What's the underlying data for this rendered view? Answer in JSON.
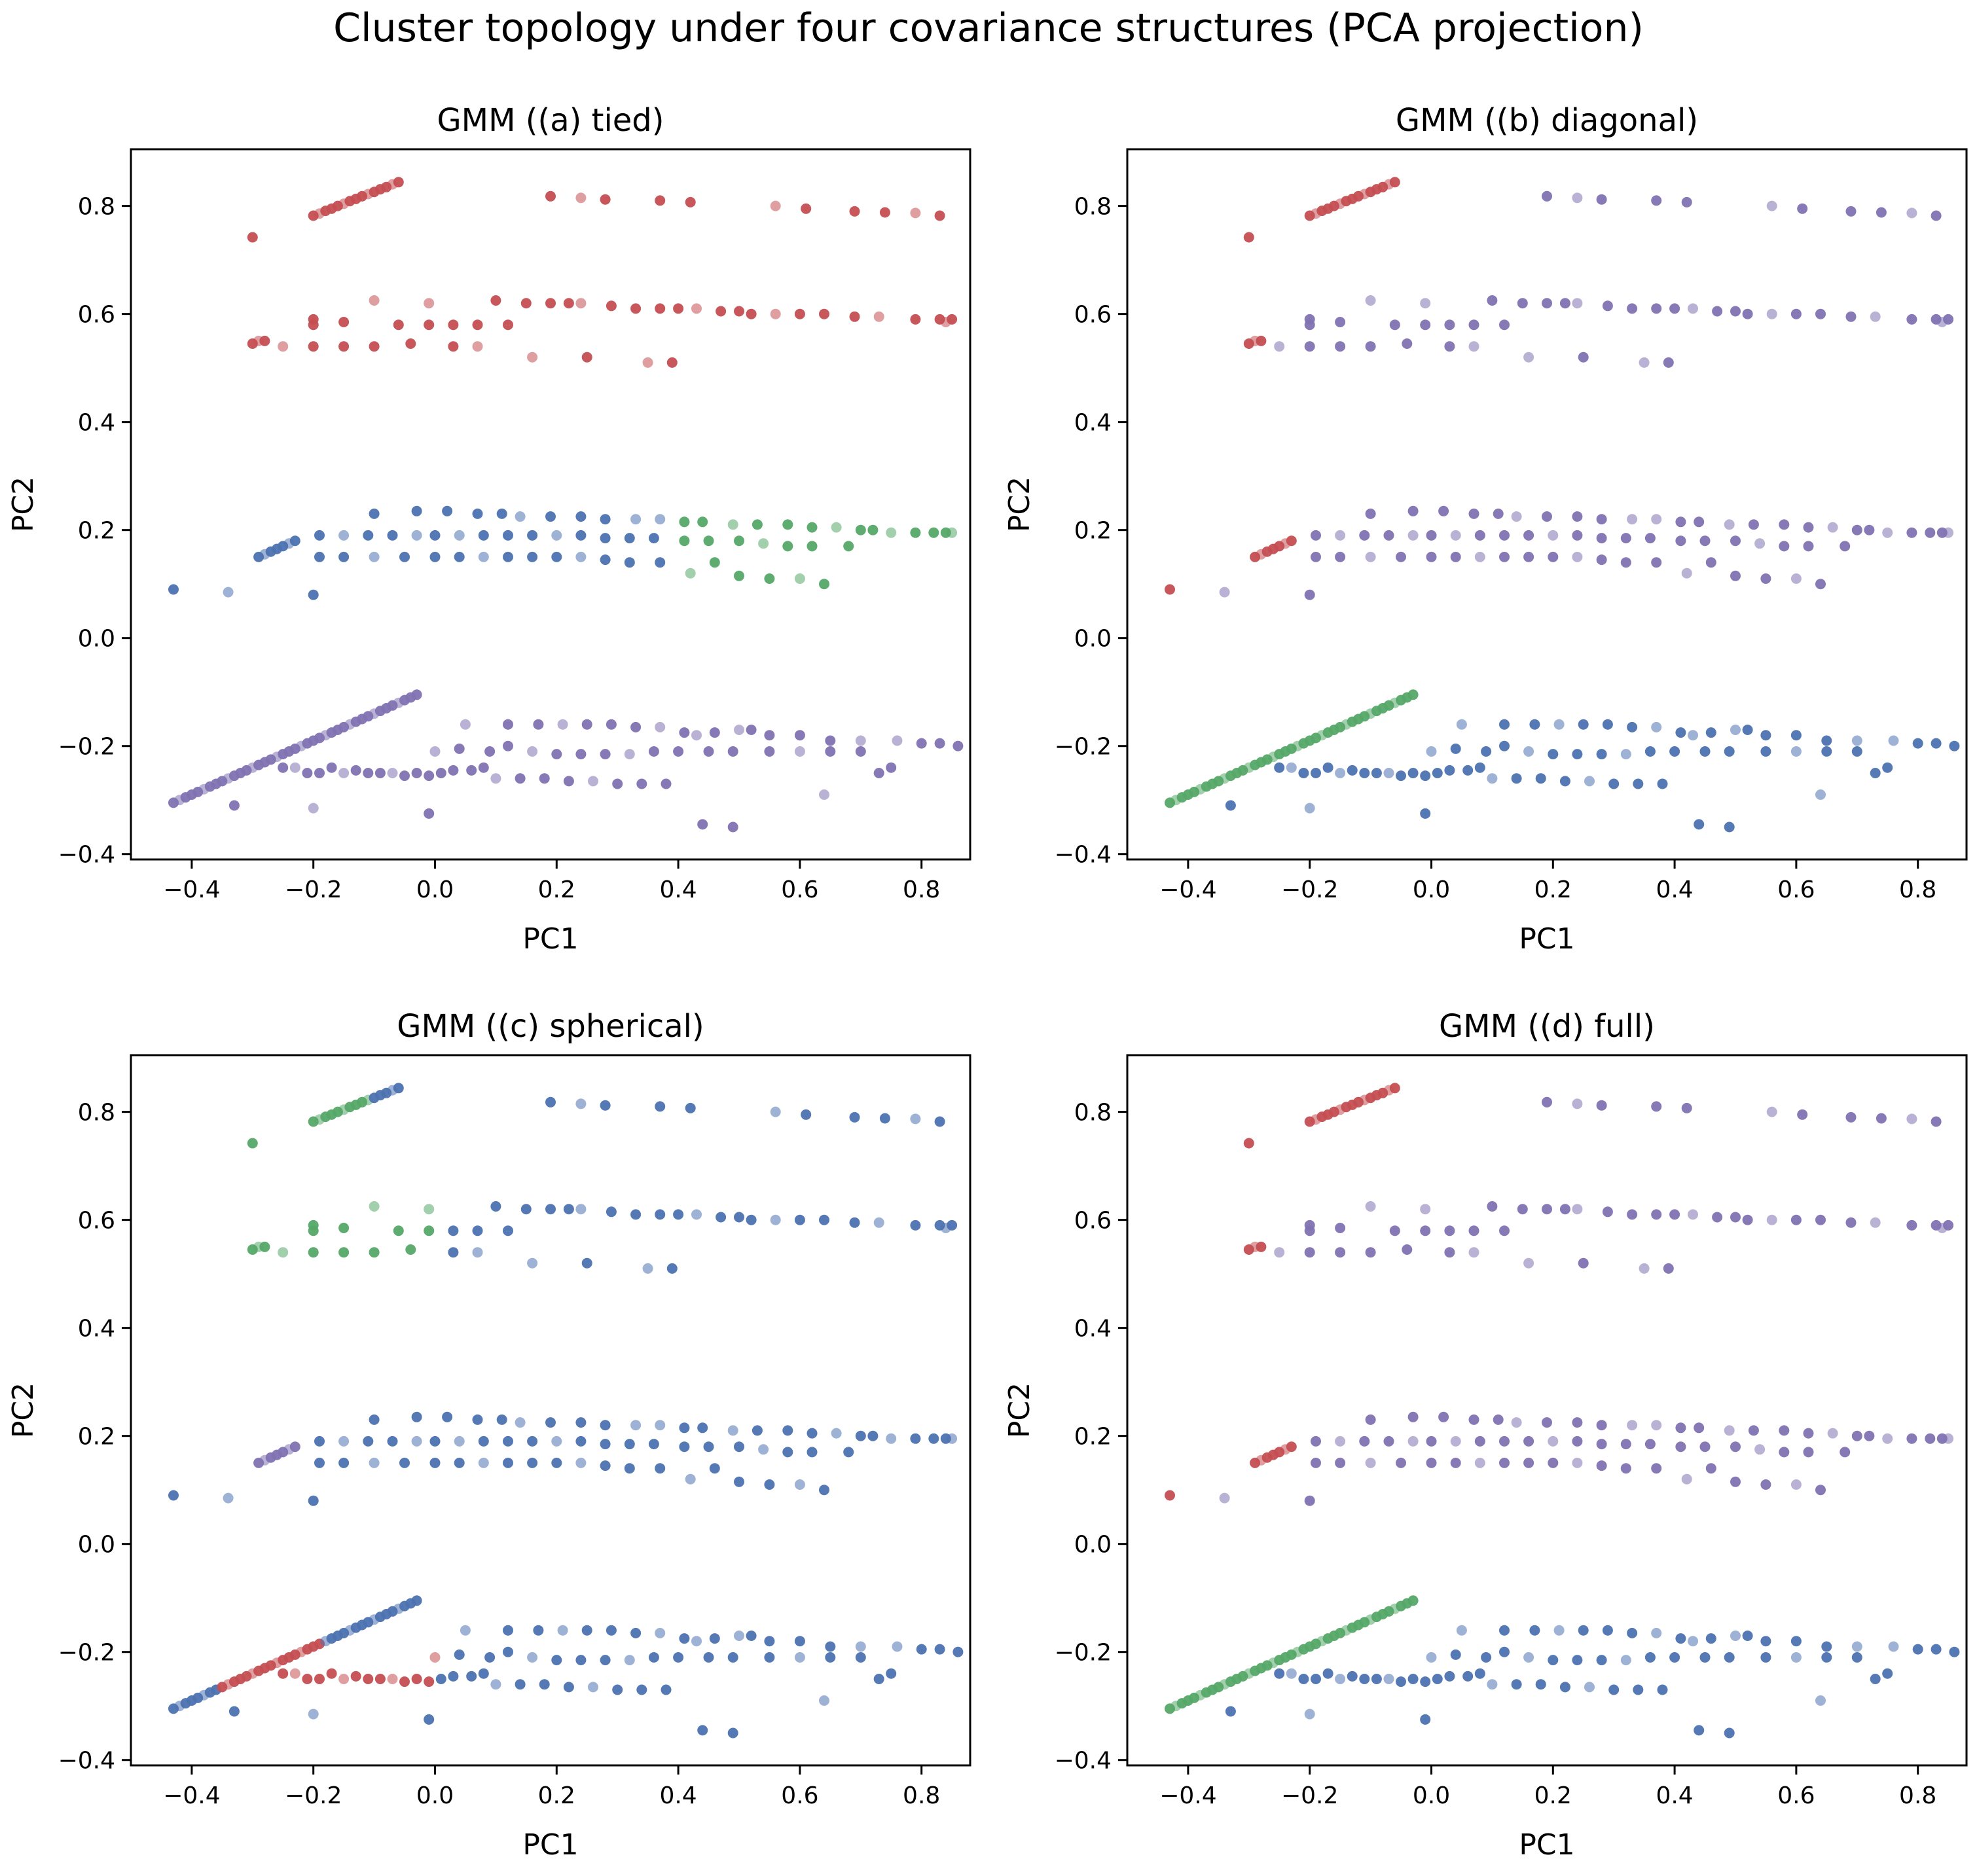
{
  "suptitle": "Cluster topology under four covariance structures (PCA projection)",
  "colors": {
    "red": "#c44e52",
    "blue": "#4c72b0",
    "green": "#55a868",
    "purple": "#8172b2"
  },
  "chart_data": {
    "type": "scatter",
    "xlim": [
      -0.5,
      0.88
    ],
    "ylim": [
      -0.41,
      0.905
    ],
    "xticks": [
      "-0.4",
      "-0.2",
      "0.0",
      "0.2",
      "0.4",
      "0.6",
      "0.8"
    ],
    "yticks": [
      "-0.4",
      "-0.2",
      "0.0",
      "0.2",
      "0.4",
      "0.6",
      "0.8"
    ],
    "grid": false,
    "legend": false,
    "panels": [
      {
        "title": "GMM ((a) tied)",
        "xlabel": "PC1",
        "ylabel": "PC2",
        "assignments": {
          "diag_top": "red",
          "band_08": "red",
          "band_06": "red",
          "band_02": [
            "blue",
            0.4,
            "green"
          ],
          "low_diag": "purple",
          "band_m02": "purple",
          "outliers_mid": "blue",
          "outliers_low": "purple"
        }
      },
      {
        "title": "GMM ((b) diagonal)",
        "xlabel": "PC1",
        "ylabel": "PC2",
        "assignments": {
          "diag_top": "red",
          "band_08": "purple",
          "band_06": [
            "red",
            -0.27,
            "purple"
          ],
          "band_02": [
            "red",
            -0.22,
            "purple"
          ],
          "low_diag": "green",
          "band_m02": "blue",
          "outliers_mid": [
            "red",
            -0.38,
            "purple"
          ],
          "outliers_low": "blue"
        }
      },
      {
        "title": "GMM ((c) spherical)",
        "xlabel": "PC1",
        "ylabel": "PC2",
        "assignments": {
          "diag_top": [
            "green",
            -0.11,
            "blue"
          ],
          "band_08": "blue",
          "band_06": [
            "green",
            0.0,
            "blue"
          ],
          "band_02": [
            "purple",
            -0.2,
            "blue"
          ],
          "low_diag": [
            "blue",
            -0.36,
            "red",
            -0.19,
            "blue"
          ],
          "band_m02": [
            "red",
            0.0,
            "blue"
          ],
          "outliers_mid": "blue",
          "outliers_low": "blue"
        }
      },
      {
        "title": "GMM ((d) full)",
        "xlabel": "PC1",
        "ylabel": "PC2",
        "assignments": {
          "diag_top": "red",
          "band_08": "purple",
          "band_06": [
            "red",
            -0.27,
            "purple"
          ],
          "band_02": [
            "red",
            -0.22,
            "purple"
          ],
          "low_diag": "green",
          "band_m02": "blue",
          "outliers_mid": [
            "red",
            -0.38,
            "purple"
          ],
          "outliers_low": "blue"
        }
      }
    ],
    "groups": {
      "diag_top": [
        [
          -0.2,
          0.782
        ],
        [
          -0.19,
          0.786
        ],
        [
          -0.18,
          0.791
        ],
        [
          -0.17,
          0.795
        ],
        [
          -0.16,
          0.8
        ],
        [
          -0.15,
          0.804
        ],
        [
          -0.14,
          0.809
        ],
        [
          -0.13,
          0.813
        ],
        [
          -0.12,
          0.818
        ],
        [
          -0.11,
          0.822
        ],
        [
          -0.1,
          0.826
        ],
        [
          -0.09,
          0.831
        ],
        [
          -0.08,
          0.835
        ],
        [
          -0.07,
          0.84
        ],
        [
          -0.06,
          0.844
        ],
        [
          -0.3,
          0.742
        ]
      ],
      "band_08": [
        [
          0.19,
          0.818
        ],
        [
          0.24,
          0.815
        ],
        [
          0.28,
          0.812
        ],
        [
          0.37,
          0.81
        ],
        [
          0.42,
          0.807
        ],
        [
          0.56,
          0.8
        ],
        [
          0.61,
          0.795
        ],
        [
          0.69,
          0.79
        ],
        [
          0.74,
          0.788
        ],
        [
          0.79,
          0.787
        ],
        [
          0.83,
          0.782
        ]
      ],
      "band_06": [
        [
          -0.3,
          0.545
        ],
        [
          -0.29,
          0.55
        ],
        [
          -0.28,
          0.55
        ],
        [
          -0.2,
          0.59
        ],
        [
          -0.2,
          0.58
        ],
        [
          -0.25,
          0.54
        ],
        [
          -0.2,
          0.54
        ],
        [
          -0.15,
          0.585
        ],
        [
          -0.15,
          0.54
        ],
        [
          -0.1,
          0.625
        ],
        [
          -0.1,
          0.54
        ],
        [
          -0.06,
          0.58
        ],
        [
          -0.04,
          0.545
        ],
        [
          -0.01,
          0.62
        ],
        [
          -0.01,
          0.58
        ],
        [
          0.03,
          0.54
        ],
        [
          0.03,
          0.58
        ],
        [
          0.07,
          0.54
        ],
        [
          0.07,
          0.58
        ],
        [
          0.1,
          0.625
        ],
        [
          0.12,
          0.58
        ],
        [
          0.16,
          0.52
        ],
        [
          0.15,
          0.62
        ],
        [
          0.19,
          0.62
        ],
        [
          0.22,
          0.62
        ],
        [
          0.24,
          0.62
        ],
        [
          0.25,
          0.52
        ],
        [
          0.29,
          0.615
        ],
        [
          0.33,
          0.61
        ],
        [
          0.35,
          0.51
        ],
        [
          0.37,
          0.61
        ],
        [
          0.39,
          0.51
        ],
        [
          0.4,
          0.61
        ],
        [
          0.43,
          0.61
        ],
        [
          0.47,
          0.605
        ],
        [
          0.5,
          0.605
        ],
        [
          0.52,
          0.6
        ],
        [
          0.56,
          0.6
        ],
        [
          0.6,
          0.6
        ],
        [
          0.64,
          0.6
        ],
        [
          0.69,
          0.595
        ],
        [
          0.73,
          0.595
        ],
        [
          0.79,
          0.59
        ],
        [
          0.83,
          0.59
        ],
        [
          0.85,
          0.59
        ],
        [
          0.84,
          0.585
        ]
      ],
      "band_02": [
        [
          -0.29,
          0.15
        ],
        [
          -0.28,
          0.155
        ],
        [
          -0.27,
          0.16
        ],
        [
          -0.26,
          0.165
        ],
        [
          -0.25,
          0.17
        ],
        [
          -0.24,
          0.175
        ],
        [
          -0.23,
          0.18
        ],
        [
          -0.19,
          0.19
        ],
        [
          -0.19,
          0.15
        ],
        [
          -0.15,
          0.19
        ],
        [
          -0.15,
          0.15
        ],
        [
          -0.11,
          0.19
        ],
        [
          -0.1,
          0.23
        ],
        [
          -0.1,
          0.15
        ],
        [
          -0.07,
          0.19
        ],
        [
          -0.05,
          0.15
        ],
        [
          -0.03,
          0.235
        ],
        [
          -0.03,
          0.19
        ],
        [
          0.0,
          0.19
        ],
        [
          0.0,
          0.15
        ],
        [
          0.02,
          0.235
        ],
        [
          0.04,
          0.19
        ],
        [
          0.04,
          0.15
        ],
        [
          0.07,
          0.23
        ],
        [
          0.08,
          0.19
        ],
        [
          0.08,
          0.15
        ],
        [
          0.11,
          0.23
        ],
        [
          0.12,
          0.19
        ],
        [
          0.12,
          0.15
        ],
        [
          0.14,
          0.225
        ],
        [
          0.16,
          0.19
        ],
        [
          0.16,
          0.15
        ],
        [
          0.19,
          0.225
        ],
        [
          0.2,
          0.19
        ],
        [
          0.2,
          0.15
        ],
        [
          0.24,
          0.225
        ],
        [
          0.24,
          0.19
        ],
        [
          0.24,
          0.15
        ],
        [
          0.28,
          0.22
        ],
        [
          0.28,
          0.185
        ],
        [
          0.28,
          0.145
        ],
        [
          0.33,
          0.22
        ],
        [
          0.32,
          0.185
        ],
        [
          0.32,
          0.14
        ],
        [
          0.36,
          0.185
        ],
        [
          0.37,
          0.22
        ],
        [
          0.37,
          0.14
        ],
        [
          0.41,
          0.215
        ],
        [
          0.41,
          0.18
        ],
        [
          0.42,
          0.12
        ],
        [
          0.44,
          0.215
        ],
        [
          0.45,
          0.18
        ],
        [
          0.46,
          0.14
        ],
        [
          0.49,
          0.21
        ],
        [
          0.5,
          0.18
        ],
        [
          0.5,
          0.115
        ],
        [
          0.53,
          0.21
        ],
        [
          0.54,
          0.175
        ],
        [
          0.55,
          0.11
        ],
        [
          0.58,
          0.21
        ],
        [
          0.58,
          0.17
        ],
        [
          0.6,
          0.11
        ],
        [
          0.62,
          0.205
        ],
        [
          0.62,
          0.17
        ],
        [
          0.64,
          0.1
        ],
        [
          0.66,
          0.205
        ],
        [
          0.68,
          0.17
        ],
        [
          0.7,
          0.2
        ],
        [
          0.72,
          0.2
        ],
        [
          0.75,
          0.195
        ],
        [
          0.79,
          0.195
        ],
        [
          0.82,
          0.195
        ],
        [
          0.84,
          0.195
        ],
        [
          0.85,
          0.195
        ]
      ],
      "low_diag": [
        [
          -0.43,
          -0.305
        ],
        [
          -0.42,
          -0.3
        ],
        [
          -0.41,
          -0.295
        ],
        [
          -0.4,
          -0.29
        ],
        [
          -0.39,
          -0.285
        ],
        [
          -0.38,
          -0.28
        ],
        [
          -0.37,
          -0.275
        ],
        [
          -0.36,
          -0.27
        ],
        [
          -0.35,
          -0.265
        ],
        [
          -0.34,
          -0.26
        ],
        [
          -0.33,
          -0.255
        ],
        [
          -0.32,
          -0.25
        ],
        [
          -0.31,
          -0.245
        ],
        [
          -0.3,
          -0.24
        ],
        [
          -0.29,
          -0.235
        ],
        [
          -0.28,
          -0.23
        ],
        [
          -0.27,
          -0.225
        ],
        [
          -0.26,
          -0.22
        ],
        [
          -0.25,
          -0.215
        ],
        [
          -0.24,
          -0.21
        ],
        [
          -0.23,
          -0.205
        ],
        [
          -0.22,
          -0.2
        ],
        [
          -0.21,
          -0.195
        ],
        [
          -0.2,
          -0.19
        ],
        [
          -0.19,
          -0.185
        ],
        [
          -0.18,
          -0.18
        ],
        [
          -0.17,
          -0.175
        ],
        [
          -0.16,
          -0.17
        ],
        [
          -0.15,
          -0.165
        ],
        [
          -0.14,
          -0.16
        ],
        [
          -0.13,
          -0.155
        ],
        [
          -0.12,
          -0.15
        ],
        [
          -0.11,
          -0.145
        ],
        [
          -0.1,
          -0.14
        ],
        [
          -0.09,
          -0.135
        ],
        [
          -0.08,
          -0.13
        ],
        [
          -0.07,
          -0.125
        ],
        [
          -0.06,
          -0.12
        ],
        [
          -0.05,
          -0.115
        ],
        [
          -0.04,
          -0.11
        ],
        [
          -0.03,
          -0.105
        ]
      ],
      "band_m02": [
        [
          -0.25,
          -0.24
        ],
        [
          -0.23,
          -0.24
        ],
        [
          -0.21,
          -0.25
        ],
        [
          -0.19,
          -0.25
        ],
        [
          -0.17,
          -0.24
        ],
        [
          -0.15,
          -0.25
        ],
        [
          -0.13,
          -0.245
        ],
        [
          -0.11,
          -0.25
        ],
        [
          -0.09,
          -0.25
        ],
        [
          -0.07,
          -0.25
        ],
        [
          -0.05,
          -0.255
        ],
        [
          -0.03,
          -0.25
        ],
        [
          -0.01,
          -0.255
        ],
        [
          0.0,
          -0.21
        ],
        [
          0.01,
          -0.25
        ],
        [
          0.03,
          -0.245
        ],
        [
          0.04,
          -0.205
        ],
        [
          0.05,
          -0.16
        ],
        [
          0.06,
          -0.245
        ],
        [
          0.08,
          -0.24
        ],
        [
          0.09,
          -0.21
        ],
        [
          0.1,
          -0.26
        ],
        [
          0.12,
          -0.2
        ],
        [
          0.12,
          -0.16
        ],
        [
          0.14,
          -0.26
        ],
        [
          0.16,
          -0.21
        ],
        [
          0.17,
          -0.16
        ],
        [
          0.18,
          -0.26
        ],
        [
          0.2,
          -0.215
        ],
        [
          0.21,
          -0.16
        ],
        [
          0.22,
          -0.265
        ],
        [
          0.24,
          -0.215
        ],
        [
          0.25,
          -0.16
        ],
        [
          0.26,
          -0.265
        ],
        [
          0.28,
          -0.215
        ],
        [
          0.29,
          -0.16
        ],
        [
          0.3,
          -0.27
        ],
        [
          0.32,
          -0.215
        ],
        [
          0.33,
          -0.165
        ],
        [
          0.34,
          -0.27
        ],
        [
          0.36,
          -0.21
        ],
        [
          0.37,
          -0.165
        ],
        [
          0.38,
          -0.27
        ],
        [
          0.4,
          -0.21
        ],
        [
          0.41,
          -0.175
        ],
        [
          0.43,
          -0.18
        ],
        [
          0.45,
          -0.21
        ],
        [
          0.46,
          -0.175
        ],
        [
          0.49,
          -0.21
        ],
        [
          0.5,
          -0.17
        ],
        [
          0.52,
          -0.17
        ],
        [
          0.55,
          -0.21
        ],
        [
          0.55,
          -0.18
        ],
        [
          0.6,
          -0.21
        ],
        [
          0.6,
          -0.18
        ],
        [
          0.65,
          -0.19
        ],
        [
          0.65,
          -0.21
        ],
        [
          0.7,
          -0.19
        ],
        [
          0.7,
          -0.21
        ],
        [
          0.73,
          -0.25
        ],
        [
          0.75,
          -0.24
        ],
        [
          0.76,
          -0.19
        ],
        [
          0.8,
          -0.195
        ],
        [
          0.83,
          -0.195
        ],
        [
          0.86,
          -0.2
        ]
      ],
      "outliers_mid": [
        [
          -0.43,
          0.09
        ],
        [
          -0.34,
          0.085
        ],
        [
          -0.2,
          0.08
        ]
      ],
      "outliers_low": [
        [
          -0.33,
          -0.31
        ],
        [
          -0.2,
          -0.315
        ],
        [
          -0.01,
          -0.325
        ],
        [
          0.44,
          -0.345
        ],
        [
          0.49,
          -0.35
        ],
        [
          0.64,
          -0.29
        ]
      ]
    }
  }
}
